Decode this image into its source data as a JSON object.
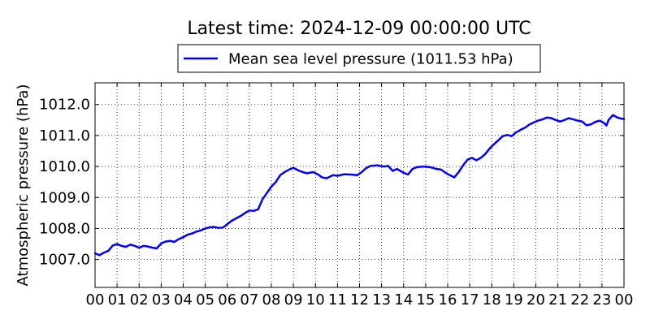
{
  "chart_data": {
    "type": "line",
    "title": "Latest time: 2024-12-09 00:00:00 UTC",
    "xlabel": "",
    "ylabel": "Atmospheric pressure (hPa)",
    "xlim": [
      0,
      24
    ],
    "ylim": [
      1006.1,
      1012.7
    ],
    "grid": true,
    "legend_position": "top-center",
    "x_ticks": [
      {
        "v": 0,
        "label": "00"
      },
      {
        "v": 1,
        "label": "01"
      },
      {
        "v": 2,
        "label": "02"
      },
      {
        "v": 3,
        "label": "03"
      },
      {
        "v": 4,
        "label": "04"
      },
      {
        "v": 5,
        "label": "05"
      },
      {
        "v": 6,
        "label": "06"
      },
      {
        "v": 7,
        "label": "07"
      },
      {
        "v": 8,
        "label": "08"
      },
      {
        "v": 9,
        "label": "09"
      },
      {
        "v": 10,
        "label": "10"
      },
      {
        "v": 11,
        "label": "11"
      },
      {
        "v": 12,
        "label": "12"
      },
      {
        "v": 13,
        "label": "13"
      },
      {
        "v": 14,
        "label": "14"
      },
      {
        "v": 15,
        "label": "15"
      },
      {
        "v": 16,
        "label": "16"
      },
      {
        "v": 17,
        "label": "17"
      },
      {
        "v": 18,
        "label": "18"
      },
      {
        "v": 19,
        "label": "19"
      },
      {
        "v": 20,
        "label": "20"
      },
      {
        "v": 21,
        "label": "21"
      },
      {
        "v": 22,
        "label": "22"
      },
      {
        "v": 23,
        "label": "23"
      },
      {
        "v": 24,
        "label": "00"
      }
    ],
    "y_ticks": [
      {
        "v": 1007,
        "label": "1007.0"
      },
      {
        "v": 1008,
        "label": "1008.0"
      },
      {
        "v": 1009,
        "label": "1009.0"
      },
      {
        "v": 1010,
        "label": "1010.0"
      },
      {
        "v": 1011,
        "label": "1011.0"
      },
      {
        "v": 1012,
        "label": "1012.0"
      }
    ],
    "series": [
      {
        "name": "Mean sea level pressure (1011.53 hPa)",
        "color": "#0000ff",
        "points": [
          [
            0.0,
            1007.2
          ],
          [
            0.2,
            1007.14
          ],
          [
            0.4,
            1007.22
          ],
          [
            0.6,
            1007.28
          ],
          [
            0.8,
            1007.45
          ],
          [
            1.0,
            1007.5
          ],
          [
            1.2,
            1007.44
          ],
          [
            1.4,
            1007.41
          ],
          [
            1.6,
            1007.48
          ],
          [
            1.8,
            1007.44
          ],
          [
            2.0,
            1007.38
          ],
          [
            2.2,
            1007.44
          ],
          [
            2.4,
            1007.42
          ],
          [
            2.6,
            1007.38
          ],
          [
            2.8,
            1007.36
          ],
          [
            3.0,
            1007.52
          ],
          [
            3.2,
            1007.58
          ],
          [
            3.4,
            1007.6
          ],
          [
            3.6,
            1007.57
          ],
          [
            3.8,
            1007.66
          ],
          [
            4.0,
            1007.72
          ],
          [
            4.2,
            1007.8
          ],
          [
            4.4,
            1007.84
          ],
          [
            4.6,
            1007.9
          ],
          [
            4.8,
            1007.94
          ],
          [
            5.0,
            1008.0
          ],
          [
            5.2,
            1008.04
          ],
          [
            5.4,
            1008.05
          ],
          [
            5.6,
            1008.02
          ],
          [
            5.8,
            1008.03
          ],
          [
            6.0,
            1008.14
          ],
          [
            6.2,
            1008.25
          ],
          [
            6.4,
            1008.33
          ],
          [
            6.6,
            1008.4
          ],
          [
            6.8,
            1008.5
          ],
          [
            7.0,
            1008.58
          ],
          [
            7.2,
            1008.57
          ],
          [
            7.4,
            1008.62
          ],
          [
            7.6,
            1008.95
          ],
          [
            7.8,
            1009.15
          ],
          [
            8.0,
            1009.35
          ],
          [
            8.2,
            1009.5
          ],
          [
            8.4,
            1009.72
          ],
          [
            8.6,
            1009.82
          ],
          [
            8.8,
            1009.9
          ],
          [
            9.0,
            1009.96
          ],
          [
            9.1,
            1009.92
          ],
          [
            9.3,
            1009.85
          ],
          [
            9.6,
            1009.78
          ],
          [
            9.9,
            1009.82
          ],
          [
            10.1,
            1009.75
          ],
          [
            10.3,
            1009.65
          ],
          [
            10.5,
            1009.62
          ],
          [
            10.8,
            1009.72
          ],
          [
            11.0,
            1009.7
          ],
          [
            11.3,
            1009.75
          ],
          [
            11.6,
            1009.74
          ],
          [
            11.9,
            1009.72
          ],
          [
            12.1,
            1009.82
          ],
          [
            12.3,
            1009.95
          ],
          [
            12.5,
            1010.02
          ],
          [
            12.8,
            1010.04
          ],
          [
            13.1,
            1010.0
          ],
          [
            13.3,
            1010.02
          ],
          [
            13.5,
            1009.86
          ],
          [
            13.7,
            1009.92
          ],
          [
            14.0,
            1009.8
          ],
          [
            14.2,
            1009.74
          ],
          [
            14.4,
            1009.92
          ],
          [
            14.6,
            1009.98
          ],
          [
            14.9,
            1010.0
          ],
          [
            15.2,
            1009.98
          ],
          [
            15.5,
            1009.92
          ],
          [
            15.7,
            1009.9
          ],
          [
            15.9,
            1009.8
          ],
          [
            16.1,
            1009.72
          ],
          [
            16.3,
            1009.65
          ],
          [
            16.5,
            1009.82
          ],
          [
            16.7,
            1010.04
          ],
          [
            16.9,
            1010.22
          ],
          [
            17.1,
            1010.28
          ],
          [
            17.3,
            1010.2
          ],
          [
            17.5,
            1010.28
          ],
          [
            17.7,
            1010.4
          ],
          [
            17.9,
            1010.58
          ],
          [
            18.1,
            1010.72
          ],
          [
            18.3,
            1010.85
          ],
          [
            18.5,
            1010.98
          ],
          [
            18.7,
            1011.02
          ],
          [
            18.9,
            1010.98
          ],
          [
            19.1,
            1011.1
          ],
          [
            19.3,
            1011.18
          ],
          [
            19.5,
            1011.25
          ],
          [
            19.7,
            1011.35
          ],
          [
            19.9,
            1011.42
          ],
          [
            20.1,
            1011.48
          ],
          [
            20.3,
            1011.52
          ],
          [
            20.5,
            1011.58
          ],
          [
            20.7,
            1011.56
          ],
          [
            20.9,
            1011.5
          ],
          [
            21.1,
            1011.45
          ],
          [
            21.3,
            1011.5
          ],
          [
            21.5,
            1011.56
          ],
          [
            21.7,
            1011.52
          ],
          [
            21.9,
            1011.48
          ],
          [
            22.1,
            1011.45
          ],
          [
            22.3,
            1011.33
          ],
          [
            22.5,
            1011.36
          ],
          [
            22.7,
            1011.44
          ],
          [
            22.9,
            1011.48
          ],
          [
            23.1,
            1011.4
          ],
          [
            23.2,
            1011.32
          ],
          [
            23.3,
            1011.5
          ],
          [
            23.5,
            1011.66
          ],
          [
            23.7,
            1011.58
          ],
          [
            23.85,
            1011.55
          ],
          [
            24.0,
            1011.53
          ]
        ]
      }
    ]
  }
}
